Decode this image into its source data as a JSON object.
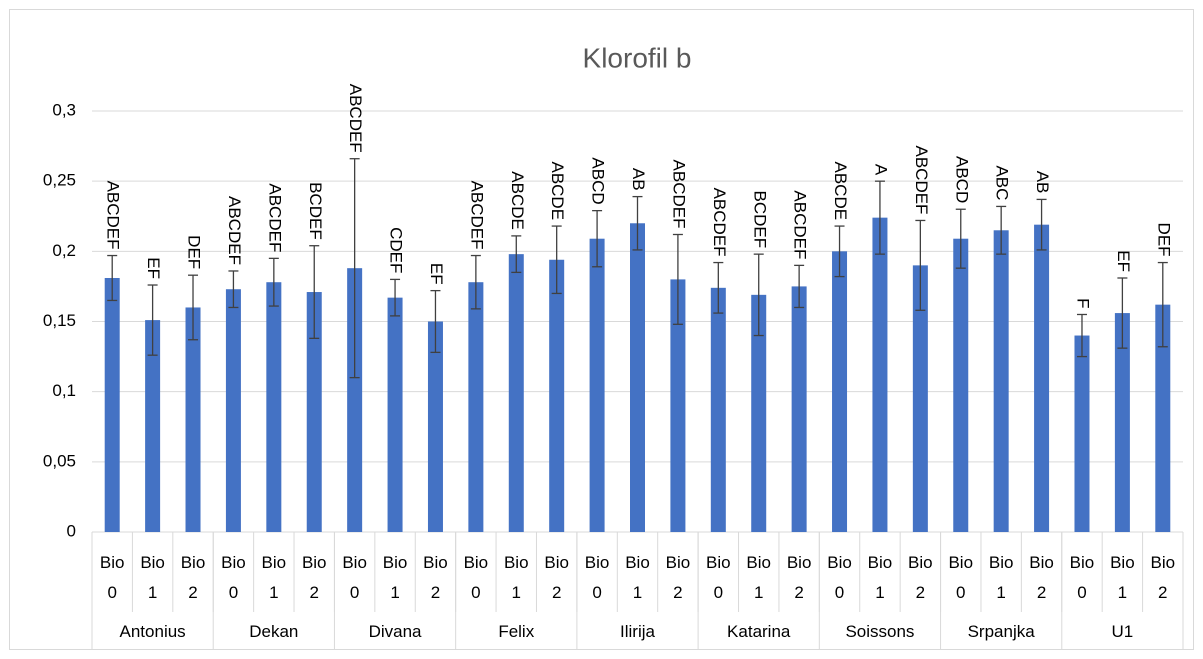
{
  "chart_data": {
    "type": "bar",
    "title": "Klorofil b",
    "color": "#4472c4",
    "groups": [
      "Antonius",
      "Dekan",
      "Divana",
      "Felix",
      "Ilirija",
      "Katarina",
      "Soissons",
      "Srpanjka",
      "U1"
    ],
    "categories": [
      "Bio 0",
      "Bio 1",
      "Bio 2",
      "Bio 0",
      "Bio 1",
      "Bio 2",
      "Bio 0",
      "Bio 1",
      "Bio 2",
      "Bio 0",
      "Bio 1",
      "Bio 2",
      "Bio 0",
      "Bio 1",
      "Bio 2",
      "Bio 0",
      "Bio 1",
      "Bio 2",
      "Bio 0",
      "Bio 1",
      "Bio 2",
      "Bio 0",
      "Bio 1",
      "Bio 2",
      "Bio 0",
      "Bio 1",
      "Bio 2"
    ],
    "values": [
      0.181,
      0.151,
      0.16,
      0.173,
      0.178,
      0.171,
      0.188,
      0.167,
      0.15,
      0.178,
      0.198,
      0.194,
      0.209,
      0.22,
      0.18,
      0.174,
      0.169,
      0.175,
      0.2,
      0.224,
      0.19,
      0.209,
      0.215,
      0.219,
      0.14,
      0.156,
      0.162
    ],
    "errors": [
      0.016,
      0.025,
      0.023,
      0.013,
      0.017,
      0.033,
      0.078,
      0.013,
      0.022,
      0.019,
      0.013,
      0.024,
      0.02,
      0.019,
      0.032,
      0.018,
      0.029,
      0.015,
      0.018,
      0.026,
      0.032,
      0.021,
      0.017,
      0.018,
      0.015,
      0.025,
      0.03
    ],
    "annotations": [
      "ABCDEF",
      "EF",
      "DEF",
      "ABCDEF",
      "ABCDEF",
      "BCDEF",
      "ABCDEF",
      "CDEF",
      "EF",
      "ABCDEF",
      "ABCDE",
      "ABCDE",
      "ABCD",
      "AB",
      "ABCDEF",
      "ABCDEF",
      "BCDEF",
      "ABCDEF",
      "ABCDE",
      "A",
      "ABCDEF",
      "ABCD",
      "ABC",
      "AB",
      "F",
      "EF",
      "DEF"
    ],
    "ylim": [
      0,
      0.3
    ],
    "yticks": [
      0,
      {
        "value": 0.05,
        "label": "0,05"
      },
      {
        "value": 0.1,
        "label": "0,1"
      },
      {
        "value": 0.15,
        "label": "0,15"
      },
      {
        "value": 0.2,
        "label": "0,2"
      },
      {
        "value": 0.25,
        "label": "0,25"
      },
      {
        "value": 0.3,
        "label": "0,3"
      }
    ],
    "grid": true
  }
}
